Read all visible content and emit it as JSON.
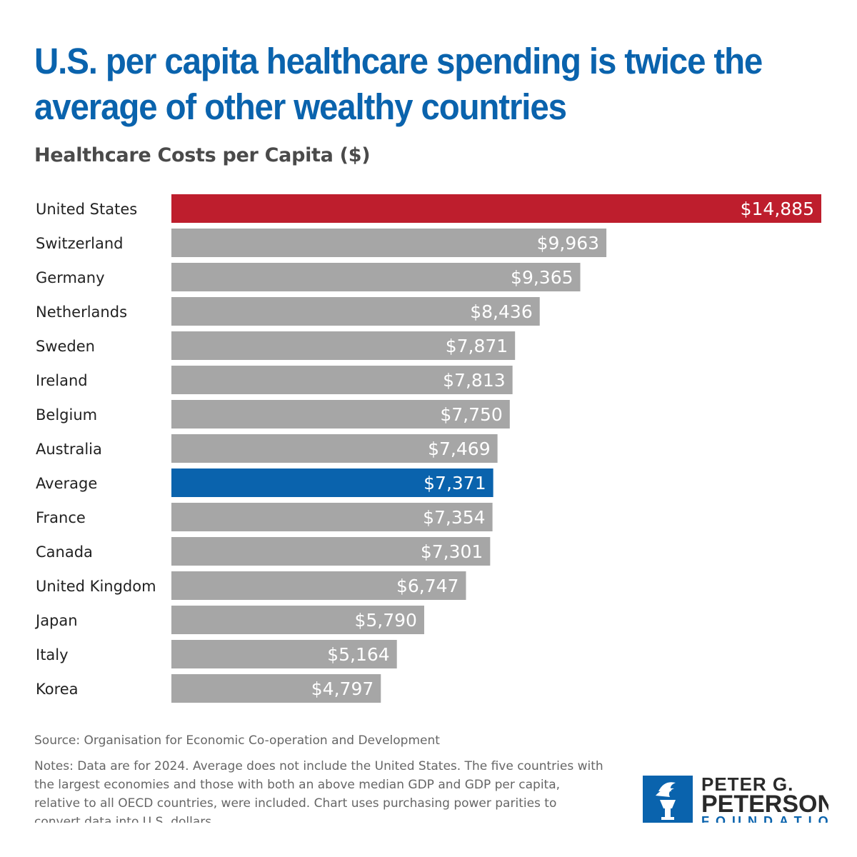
{
  "title_line1": "U.S. per capita healthcare spending is twice the",
  "title_line2": "average of other wealthy countries",
  "source": "Source: Organisation for Economic Co-operation and Development",
  "notes": "Notes: Data are for 2024. Average does not include the United States. The five countries with the largest economies and those with both an above median GDP and GDP per capita, relative to all OECD countries, were included. Chart uses purchasing power parities to convert data into U.S. dollars.",
  "logo": {
    "line1": "PETER G.",
    "line2": "PETERSON",
    "line3": "FOUNDATION",
    "icon": "torch-icon"
  },
  "colors": {
    "title": "#0a63ad",
    "us_bar": "#be1e2d",
    "average_bar": "#0a63ad",
    "other_bar": "#a6a6a6"
  },
  "chart_data": {
    "type": "bar",
    "orientation": "horizontal",
    "title": "Healthcare Costs per Capita ($)",
    "xlim": [
      0,
      14885
    ],
    "grid": false,
    "legend": "none",
    "categories": [
      "United States",
      "Switzerland",
      "Germany",
      "Netherlands",
      "Sweden",
      "Ireland",
      "Belgium",
      "Australia",
      "Average",
      "France",
      "Canada",
      "United Kingdom",
      "Japan",
      "Italy",
      "Korea"
    ],
    "values": [
      14885,
      9963,
      9365,
      8436,
      7871,
      7813,
      7750,
      7469,
      7371,
      7354,
      7301,
      6747,
      5790,
      5164,
      4797
    ],
    "value_labels": [
      "$14,885",
      "$9,963",
      "$9,365",
      "$8,436",
      "$7,871",
      "$7,813",
      "$7,750",
      "$7,469",
      "$7,371",
      "$7,354",
      "$7,301",
      "$6,747",
      "$5,790",
      "$5,164",
      "$4,797"
    ],
    "highlight": {
      "United States": "#be1e2d",
      "Average": "#0a63ad"
    }
  }
}
